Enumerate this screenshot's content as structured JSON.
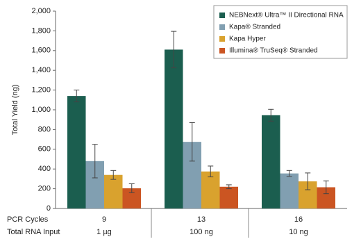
{
  "chart_data": {
    "type": "bar",
    "y_label": "Total Yield (ng)",
    "categories": [
      "9",
      "13",
      "16"
    ],
    "row_labels": [
      "PCR Cycles",
      "Total RNA Input"
    ],
    "second_row": [
      "1 µg",
      "100 ng",
      "10 ng"
    ],
    "series": [
      {
        "name": "NEBNext® Ultra™ II Directional RNA",
        "color": "#1b5e4f",
        "values": [
          1140,
          1610,
          945
        ],
        "errors": [
          60,
          185,
          60
        ]
      },
      {
        "name": "Kapa® Stranded",
        "color": "#819fb1",
        "values": [
          480,
          675,
          355
        ],
        "errors": [
          170,
          195,
          30
        ]
      },
      {
        "name": "Kapa Hyper",
        "color": "#d9a22e",
        "values": [
          340,
          375,
          275
        ],
        "errors": [
          45,
          55,
          85
        ]
      },
      {
        "name": "Illumina® TruSeq® Stranded",
        "color": "#cb5522",
        "values": [
          205,
          220,
          215
        ],
        "errors": [
          45,
          20,
          65
        ]
      }
    ],
    "ylim": [
      0,
      2000
    ],
    "yticks": [
      0,
      200,
      400,
      600,
      800,
      {
        "value": 1000,
        "label": "1,000"
      },
      {
        "value": 1200,
        "label": "1,200"
      },
      {
        "value": 1400,
        "label": "1,400"
      },
      {
        "value": 1600,
        "label": "1,600"
      },
      {
        "value": 1800,
        "label": "1,800"
      },
      {
        "value": 2000,
        "label": "2,000"
      }
    ],
    "legend": "top-right"
  }
}
